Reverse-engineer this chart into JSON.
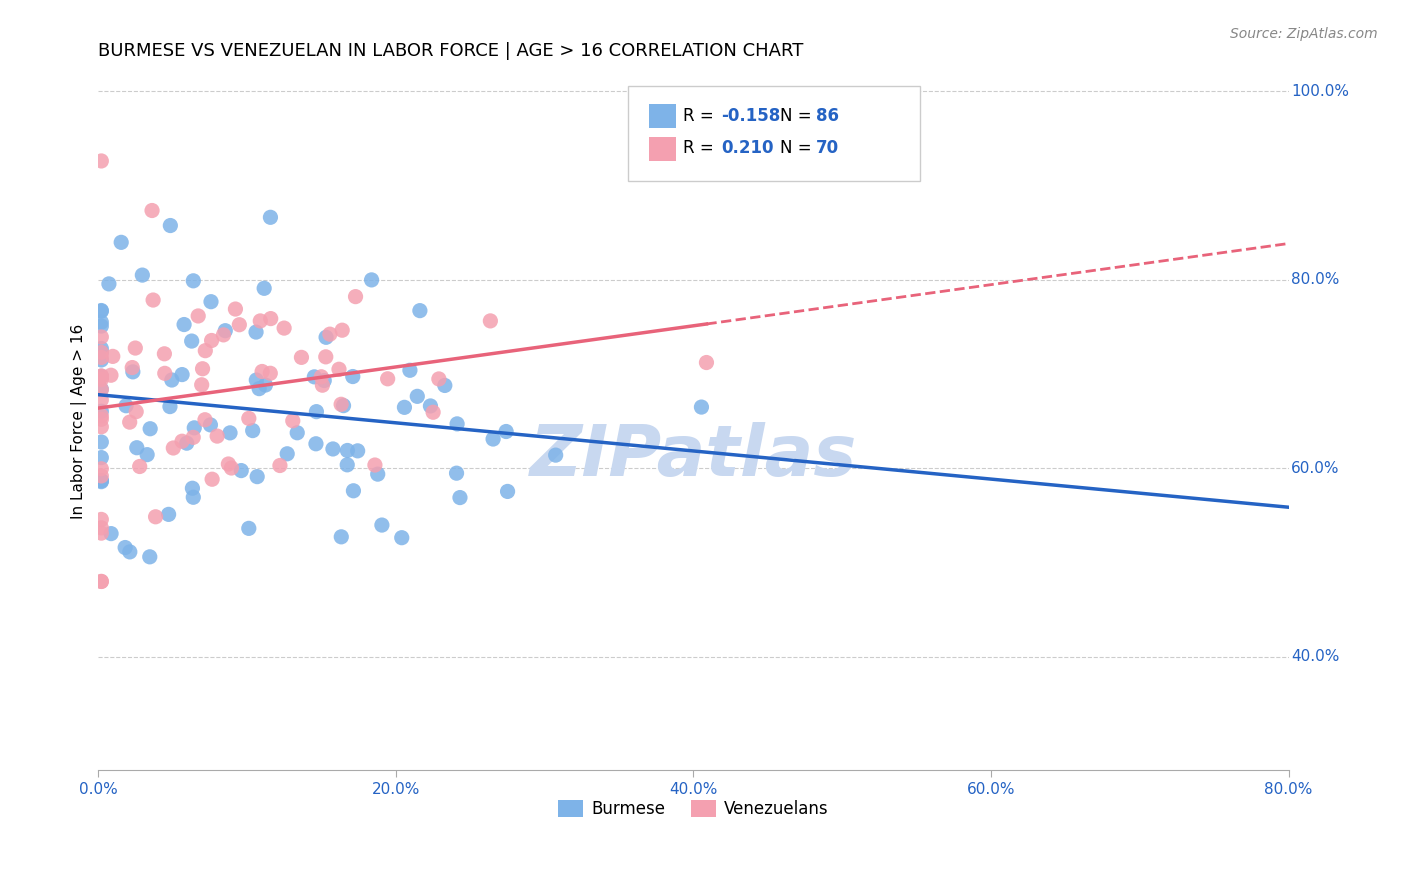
{
  "title": "BURMESE VS VENEZUELAN IN LABOR FORCE | AGE > 16 CORRELATION CHART",
  "source": "Source: ZipAtlas.com",
  "xlabel_ticks": [
    "0.0%",
    "20.0%",
    "40.0%",
    "60.0%",
    "80.0%"
  ],
  "ylabel_ticks": [
    "40.0%",
    "60.0%",
    "80.0%",
    "100.0%"
  ],
  "xlim": [
    0.0,
    0.8
  ],
  "ylim": [
    0.28,
    1.02
  ],
  "ylabel": "In Labor Force | Age > 16",
  "burmese_R": -0.158,
  "burmese_N": 86,
  "venezuelan_R": 0.21,
  "venezuelan_N": 70,
  "burmese_color": "#7EB3E8",
  "venezuelan_color": "#F4A0B0",
  "burmese_line_color": "#2563C4",
  "venezuelan_line_color": "#E8637A",
  "grid_color": "#CCCCCC",
  "background_color": "#FFFFFF",
  "watermark": "ZIPatlas",
  "watermark_color": "#C8D8F0",
  "title_fontsize": 13,
  "axis_label_color": "#2563C4",
  "tick_color": "#2563C4"
}
